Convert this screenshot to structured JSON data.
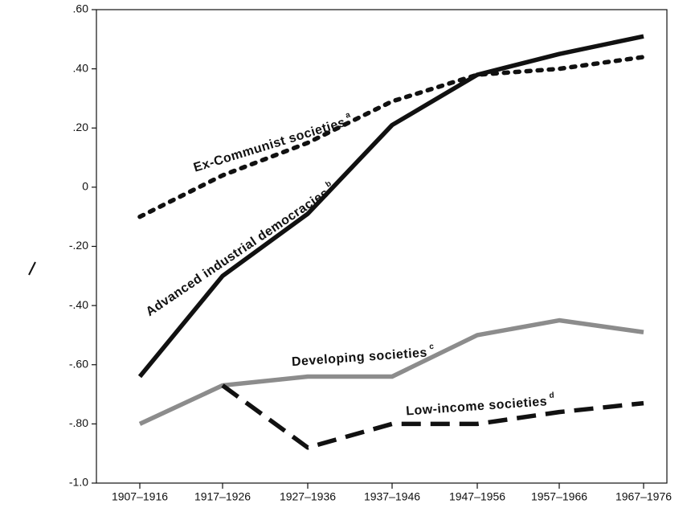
{
  "chart_data": {
    "type": "line",
    "categories": [
      "1907–1916",
      "1917–1926",
      "1927–1936",
      "1937–1946",
      "1947–1956",
      "1957–1966",
      "1967–1976"
    ],
    "ylim": [
      -1.0,
      0.6
    ],
    "yticks": [
      {
        "value": -1.0,
        "label": "-1.0"
      },
      {
        "value": -0.8,
        "label": "-.80"
      },
      {
        "value": -0.6,
        "label": "-.60"
      },
      {
        "value": -0.4,
        "label": "-.40"
      },
      {
        "value": -0.2,
        "label": "-.20"
      },
      0,
      {
        "value": 0.2,
        "label": ".20"
      },
      {
        "value": 0.4,
        "label": ".40"
      },
      {
        "value": 0.6,
        "label": ".60"
      }
    ],
    "series": [
      {
        "name": "Ex-Communist societies",
        "note": "a",
        "color": "#111111",
        "style": "dotted",
        "values": [
          -0.1,
          0.04,
          0.15,
          0.29,
          0.38,
          0.4,
          0.44
        ]
      },
      {
        "name": "Advanced industrial democracies",
        "note": "b",
        "color": "#111111",
        "style": "solid",
        "values": [
          -0.64,
          -0.3,
          -0.09,
          0.21,
          0.38,
          0.45,
          0.51
        ]
      },
      {
        "name": "Developing societies",
        "note": "c",
        "color": "#8c8c8c",
        "style": "solid",
        "values": [
          -0.8,
          -0.67,
          -0.64,
          -0.64,
          -0.5,
          -0.45,
          -0.49
        ]
      },
      {
        "name": "Low-income societies",
        "note": "d",
        "color": "#111111",
        "style": "dashed",
        "values": [
          null,
          -0.67,
          -0.88,
          -0.8,
          -0.8,
          -0.76,
          -0.73
        ]
      }
    ]
  }
}
